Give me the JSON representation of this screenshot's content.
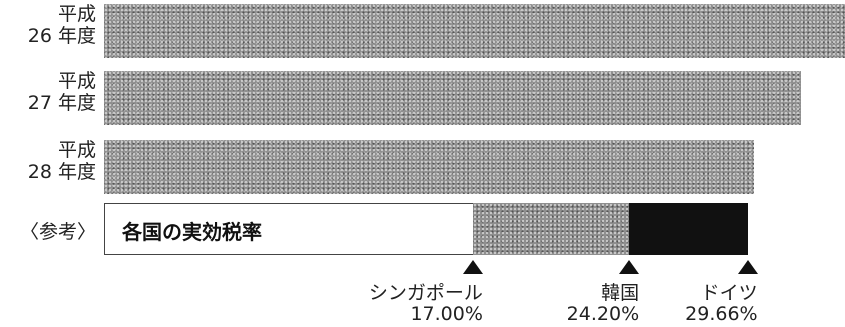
{
  "chart_data": {
    "type": "bar",
    "orientation": "horizontal",
    "categories": [
      {
        "era": "平成",
        "year": "26 年度"
      },
      {
        "era": "平成",
        "year": "27 年度"
      },
      {
        "era": "平成",
        "year": "28 年度"
      }
    ],
    "values": [
      34.62,
      32.11,
      29.97
    ],
    "xlim": [
      0,
      35
    ],
    "xlabel": "",
    "ylabel": "",
    "title": "",
    "reference": {
      "label": "〈参考〉",
      "title": "各国の実効税率",
      "markers": [
        {
          "name": "シンガポール",
          "value": 17.0,
          "value_label": "17.00%"
        },
        {
          "name": "韓国",
          "value": 24.2,
          "value_label": "24.20%"
        },
        {
          "name": "ドイツ",
          "value": 29.66,
          "value_label": "29.66%"
        }
      ]
    }
  }
}
